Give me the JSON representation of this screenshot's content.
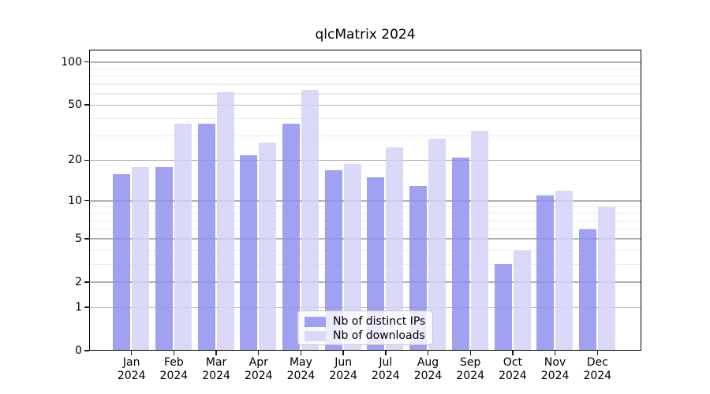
{
  "title": "qlcMatrix 2024",
  "legend": {
    "items": [
      {
        "label": "Nb of distinct IPs",
        "color": "rgba(145,145,238,0.85)"
      },
      {
        "label": "Nb of downloads",
        "color": "rgba(211,211,247,0.85)"
      }
    ]
  },
  "colors": {
    "bar_distinct_ips": "rgba(145,145,238,0.85)",
    "bar_downloads": "rgba(211,211,247,0.85)",
    "grid_major": "#b1b1b1",
    "grid_minor": "#ebebeb",
    "spine": "#000000",
    "text": "#000000",
    "legend_border": "#c9c9c9",
    "legend_background": "rgba(255,255,255,0.8)"
  },
  "chart_data": {
    "type": "bar",
    "title": "qlcMatrix 2024",
    "xlabel": "",
    "ylabel": "",
    "x_tick_year": "2024",
    "categories": [
      "Jan 2024",
      "Feb 2024",
      "Mar 2024",
      "Apr 2024",
      "May 2024",
      "Jun 2024",
      "Jul 2024",
      "Aug 2024",
      "Sep 2024",
      "Oct 2024",
      "Nov 2024",
      "Dec 2024"
    ],
    "series": [
      {
        "name": "Nb of distinct IPs",
        "color": "rgba(145,145,238,0.85)",
        "values": [
          16,
          18,
          37,
          22,
          37,
          17,
          15,
          13,
          21,
          3,
          11,
          6
        ]
      },
      {
        "name": "Nb of downloads",
        "color": "rgba(211,211,247,0.85)",
        "values": [
          18,
          37,
          62,
          27,
          64,
          19,
          25,
          29,
          33,
          4,
          12,
          9
        ]
      }
    ],
    "yscale": "log1p",
    "ylim": [
      0,
      121
    ],
    "y_major_ticks": [
      0,
      1,
      2,
      5,
      10,
      20,
      50,
      100
    ],
    "y_minor_gridlines": [
      3,
      4,
      6,
      7,
      8,
      9,
      30,
      40,
      60,
      70,
      80,
      90
    ],
    "grid": "on",
    "legend_position": "lower center"
  }
}
